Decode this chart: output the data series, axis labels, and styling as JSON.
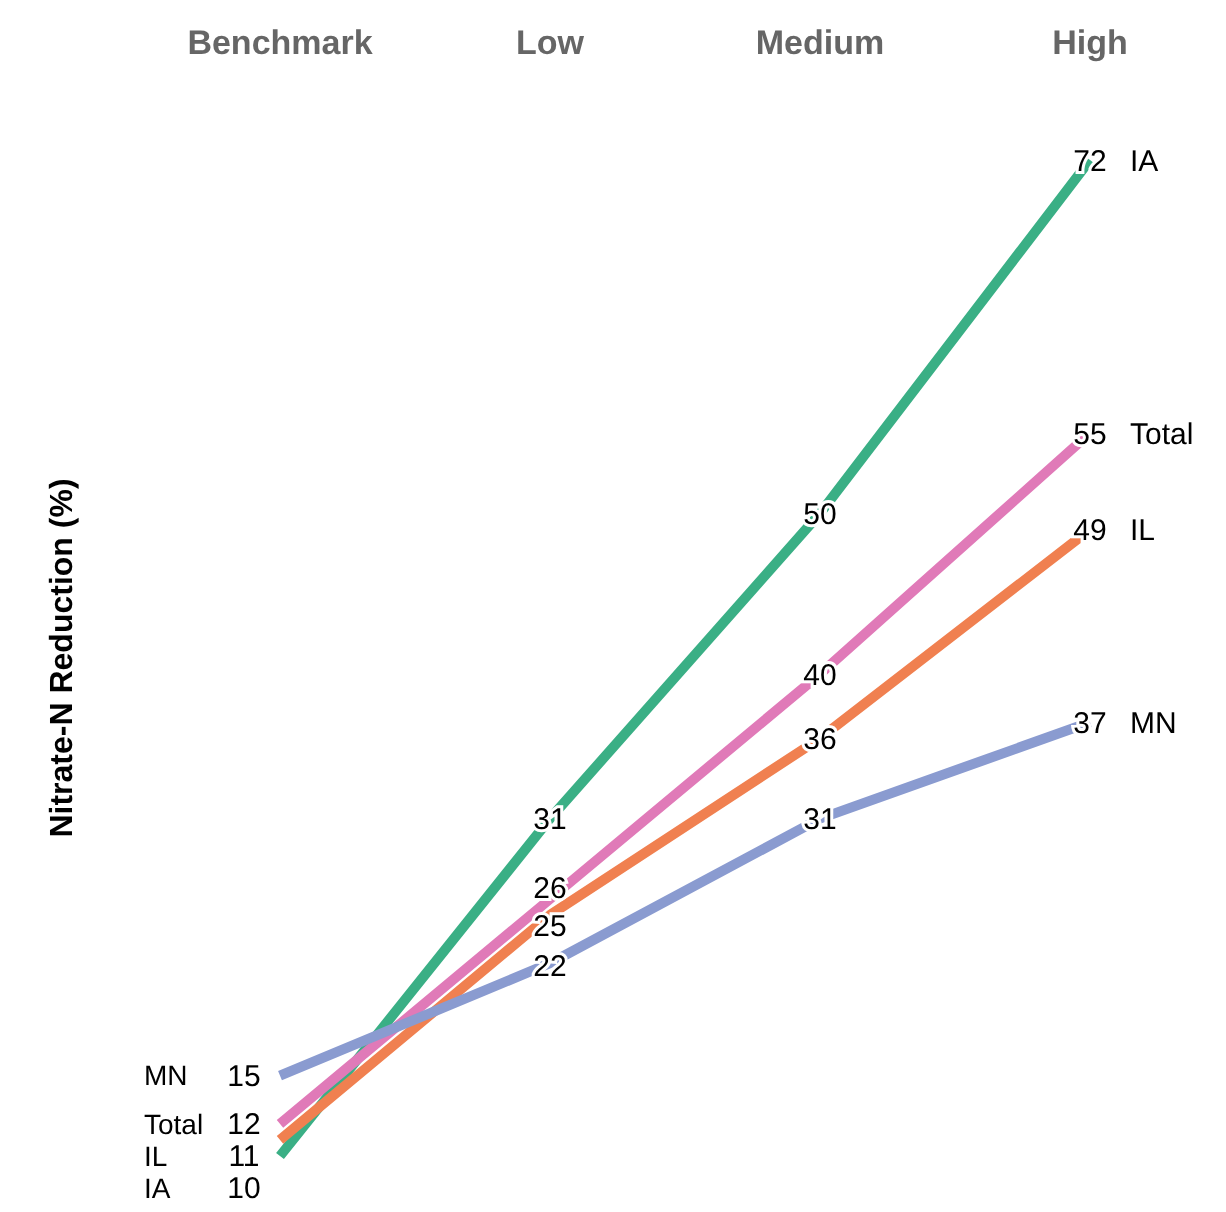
{
  "chart_data": {
    "type": "line",
    "ylabel": "Nitrate-N Reduction (%)",
    "categories": [
      "Benchmark",
      "Low",
      "Medium",
      "High"
    ],
    "tick_labels": "x",
    "data_labels": true,
    "line_style": "solid",
    "legend": false,
    "grid": false,
    "series": [
      {
        "name": "IA",
        "color": "#3aaf85",
        "values": [
          10,
          31,
          50,
          72
        ]
      },
      {
        "name": "Total",
        "color": "#e07ab8",
        "values": [
          12,
          26,
          40,
          55
        ]
      },
      {
        "name": "IL",
        "color": "#f08050",
        "values": [
          11,
          25,
          36,
          49
        ]
      },
      {
        "name": "MN",
        "color": "#8a9bd0",
        "values": [
          15,
          22,
          31,
          37
        ]
      }
    ]
  }
}
